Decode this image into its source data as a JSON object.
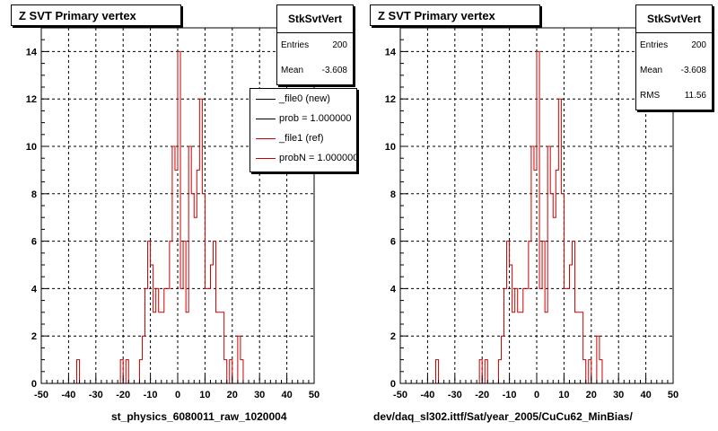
{
  "chart_data": [
    {
      "type": "histogram",
      "title": "Z SVT Primary vertex",
      "xlabel": "st_physics_6080011_raw_1020004",
      "xlim": [
        -50,
        50
      ],
      "ylim": [
        0,
        15
      ],
      "xticks": [
        -50,
        -40,
        -30,
        -20,
        -10,
        0,
        10,
        20,
        30,
        40,
        50
      ],
      "yticks": [
        0,
        2,
        4,
        6,
        8,
        10,
        12,
        14
      ],
      "grid": true,
      "bin_width": 1,
      "stats": {
        "name": "StkSvtVert",
        "rows": [
          {
            "key": "Entries",
            "value": "200"
          },
          {
            "key": "Mean",
            "value": "-3.608"
          }
        ]
      },
      "legend": {
        "placement": "top-right",
        "entries": [
          {
            "label": "_file0 (new)",
            "color": "#000000"
          },
          {
            "label": "prob = 1.000000",
            "color": "#000000"
          },
          {
            "label": "_file1 (ref)",
            "color": "#cc0000"
          },
          {
            "label": "probN = 1.000000",
            "color": "#cc0000"
          }
        ]
      },
      "series": [
        {
          "name": "_file1 (ref)",
          "color": "#cc0000"
        }
      ]
    },
    {
      "type": "histogram",
      "title": "Z SVT Primary vertex",
      "xlabel": "dev/daq_sl302.ittf/Sat/year_2005/CuCu62_MinBias/",
      "xlim": [
        -50,
        50
      ],
      "ylim": [
        0,
        15
      ],
      "xticks": [
        -50,
        -40,
        -30,
        -20,
        -10,
        0,
        10,
        20,
        30,
        40,
        50
      ],
      "yticks": [
        0,
        2,
        4,
        6,
        8,
        10,
        12,
        14
      ],
      "grid": true,
      "bin_width": 1,
      "stats": {
        "name": "StkSvtVert",
        "rows": [
          {
            "key": "Entries",
            "value": "200"
          },
          {
            "key": "Mean",
            "value": "-3.608"
          },
          {
            "key": "RMS",
            "value": "11.56"
          }
        ]
      },
      "series": [
        {
          "name": "",
          "color": "#cc0000"
        }
      ]
    }
  ],
  "histogram_bins": {
    "x_start": -50,
    "bin_width": 1,
    "counts": [
      0,
      0,
      0,
      0,
      0,
      0,
      0,
      0,
      0,
      0,
      0,
      0,
      0,
      1,
      0,
      0,
      0,
      0,
      0,
      0,
      0,
      0,
      0,
      0,
      0,
      0,
      0,
      0,
      0,
      1,
      0,
      1,
      0,
      0,
      0,
      0,
      1,
      2,
      4,
      6,
      5,
      3,
      4,
      3,
      3,
      4,
      4,
      6,
      10,
      9,
      14,
      4,
      6,
      3,
      10,
      8,
      7,
      9,
      12,
      8,
      4,
      4,
      5,
      6,
      3,
      3,
      3,
      1,
      0,
      1,
      0,
      0,
      2,
      1,
      0,
      0,
      0,
      0,
      0,
      0,
      0,
      0,
      0,
      0,
      0,
      0,
      0,
      0,
      0,
      0,
      0,
      0,
      0,
      0,
      0,
      0,
      0,
      0,
      0,
      0
    ],
    "note": "bins read off the plot from x=-50 to x=50"
  }
}
